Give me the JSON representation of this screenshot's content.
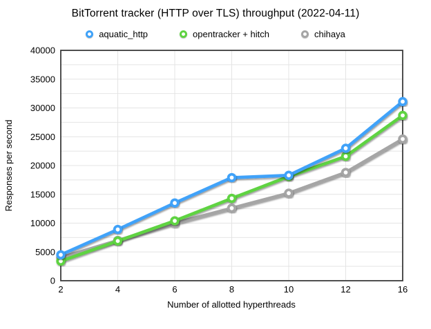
{
  "chart_data": {
    "type": "line",
    "title": "BitTorrent tracker (HTTP over TLS) throughput (2022-04-11)",
    "xlabel": "Number of allotted hyperthreads",
    "ylabel": "Responses per second",
    "categories": [
      2,
      4,
      6,
      8,
      10,
      12,
      16
    ],
    "ylim": [
      0,
      40000
    ],
    "y_major_step": 5000,
    "y_minor_step": 2500,
    "grid": true,
    "legend_position": "top",
    "marker": "open-circle",
    "colors": {
      "grid": "#e4e4e4",
      "frame": "#3b3b3b",
      "text": "#000000"
    },
    "series": [
      {
        "name": "aquatic_http",
        "color": "#3FA2F9",
        "values": [
          4500,
          8900,
          13500,
          17900,
          18300,
          23000,
          31100
        ]
      },
      {
        "name": "opentracker + hitch",
        "color": "#5FD342",
        "values": [
          3400,
          6900,
          10400,
          14300,
          18100,
          21600,
          28700
        ]
      },
      {
        "name": "chihaya",
        "color": "#A5A5A5",
        "values": [
          4000,
          7000,
          10000,
          12600,
          15200,
          18800,
          24600
        ]
      }
    ]
  }
}
